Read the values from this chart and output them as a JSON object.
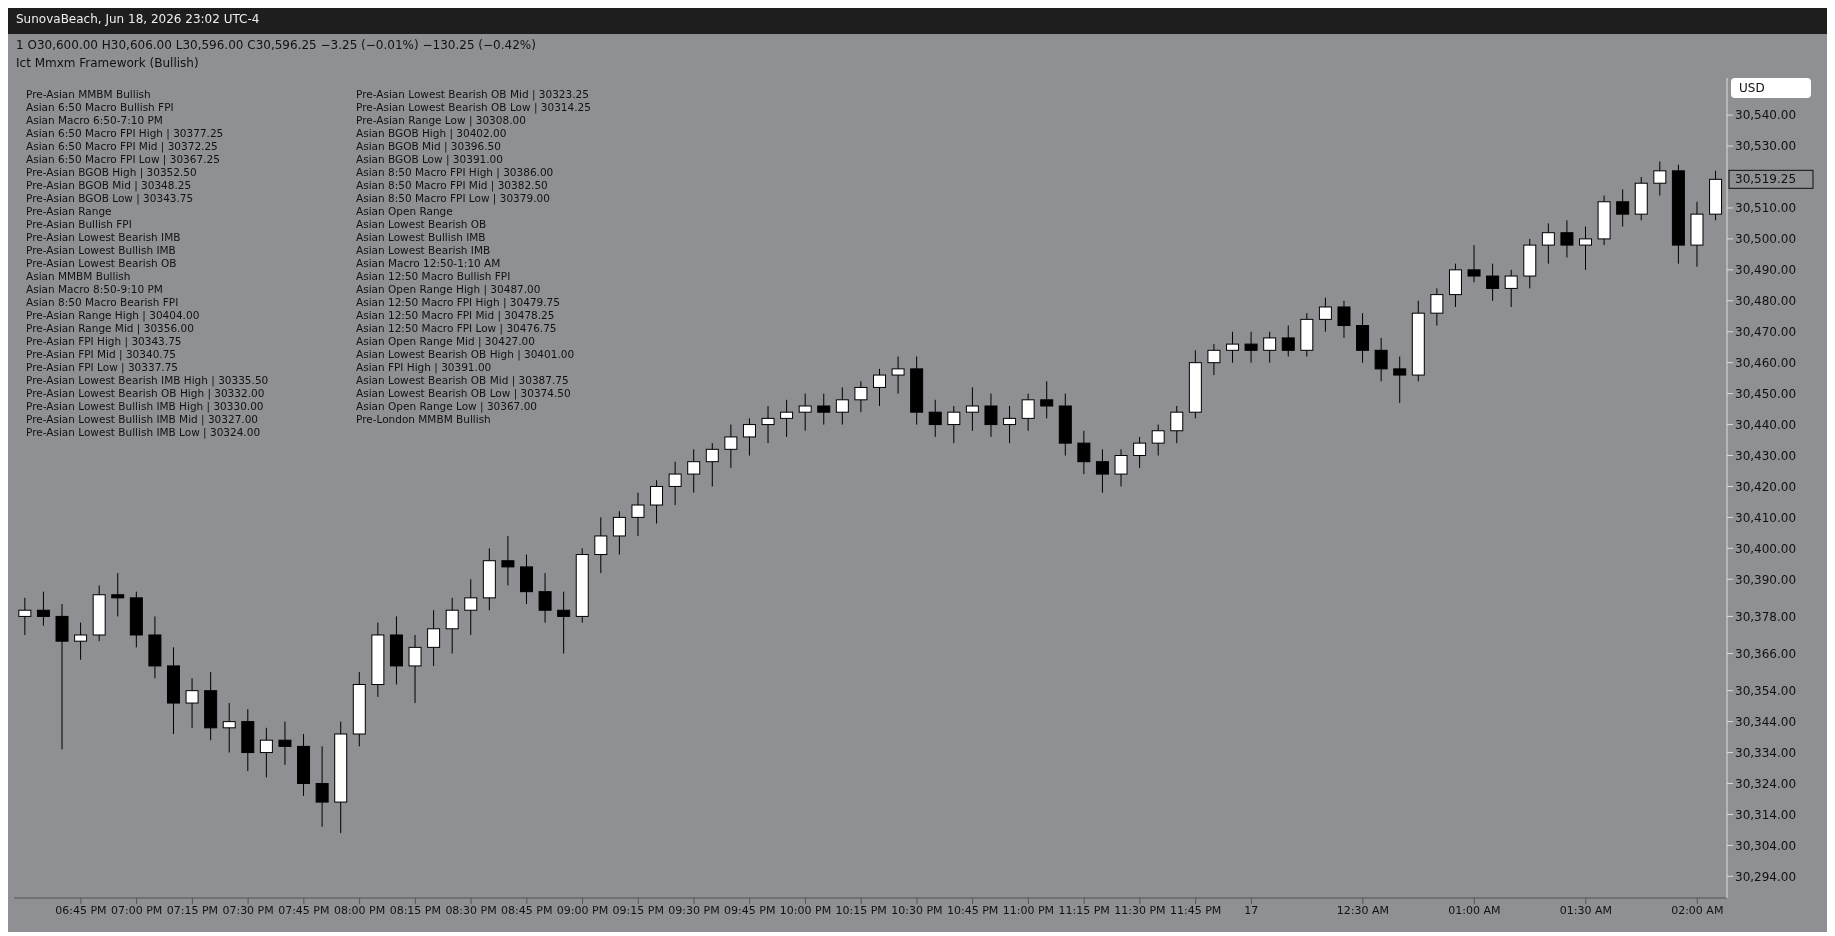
{
  "chart_data": {
    "type": "candlestick",
    "title": "SunovaBeach, Jun 18, 2026 23:02 UTC-4",
    "subtitle": "1  O30,600.00  H30,606.00  L30,596.00  C30,596.25  −3.25 (−0.01%)  −130.25 (−0.42%)",
    "x": [
      "2026-06-16T18:30",
      "2026-06-16T18:35",
      "2026-06-16T18:40",
      "2026-06-16T18:45",
      "2026-06-16T18:50",
      "2026-06-16T18:55",
      "2026-06-16T19:00",
      "2026-06-16T19:05",
      "2026-06-16T19:10",
      "2026-06-16T19:15",
      "2026-06-16T19:20",
      "2026-06-16T19:25",
      "2026-06-16T19:30",
      "2026-06-16T19:35",
      "2026-06-16T19:40",
      "2026-06-16T19:45",
      "2026-06-16T19:50",
      "2026-06-16T19:55",
      "2026-06-16T20:00",
      "2026-06-16T20:05",
      "2026-06-16T20:10",
      "2026-06-16T20:15",
      "2026-06-16T20:20",
      "2026-06-16T20:25",
      "2026-06-16T20:30",
      "2026-06-16T20:35",
      "2026-06-16T20:40",
      "2026-06-16T20:45",
      "2026-06-16T20:50",
      "2026-06-16T20:55",
      "2026-06-16T21:00",
      "2026-06-16T21:05",
      "2026-06-16T21:10",
      "2026-06-16T21:15",
      "2026-06-16T21:20",
      "2026-06-16T21:25",
      "2026-06-16T21:30",
      "2026-06-16T21:35",
      "2026-06-16T21:40",
      "2026-06-16T21:45",
      "2026-06-16T21:50",
      "2026-06-16T21:55",
      "2026-06-16T22:00",
      "2026-06-16T22:05",
      "2026-06-16T22:10",
      "2026-06-16T22:15",
      "2026-06-16T22:20",
      "2026-06-16T22:25",
      "2026-06-16T22:30",
      "2026-06-16T22:35",
      "2026-06-16T22:40",
      "2026-06-16T22:45",
      "2026-06-16T22:50",
      "2026-06-16T22:55",
      "2026-06-16T23:00",
      "2026-06-16T23:05",
      "2026-06-16T23:10",
      "2026-06-16T23:15",
      "2026-06-16T23:20",
      "2026-06-16T23:25",
      "2026-06-16T23:30",
      "2026-06-16T23:35",
      "2026-06-16T23:40",
      "2026-06-16T23:45",
      "2026-06-16T23:50",
      "2026-06-16T23:55",
      "2026-06-17T00:00",
      "2026-06-17T00:05",
      "2026-06-17T00:10",
      "2026-06-17T00:15",
      "2026-06-17T00:20",
      "2026-06-17T00:25",
      "2026-06-17T00:30",
      "2026-06-17T00:35",
      "2026-06-17T00:40",
      "2026-06-17T00:45",
      "2026-06-17T00:50",
      "2026-06-17T00:55",
      "2026-06-17T01:00",
      "2026-06-17T01:05",
      "2026-06-17T01:10",
      "2026-06-17T01:15",
      "2026-06-17T01:20",
      "2026-06-17T01:25",
      "2026-06-17T01:30",
      "2026-06-17T01:35",
      "2026-06-17T01:40",
      "2026-06-17T01:45",
      "2026-06-17T01:50",
      "2026-06-17T01:55",
      "2026-06-17T02:00",
      "2026-06-17T02:05"
    ],
    "ohlc": [
      [
        30378,
        30384,
        30372,
        30380
      ],
      [
        30380,
        30386,
        30375,
        30378
      ],
      [
        30378,
        30382,
        30335,
        30370
      ],
      [
        30370,
        30376,
        30364,
        30372
      ],
      [
        30372,
        30388,
        30370,
        30385
      ],
      [
        30385,
        30392,
        30378,
        30384
      ],
      [
        30384,
        30386,
        30368,
        30372
      ],
      [
        30372,
        30378,
        30358,
        30362
      ],
      [
        30362,
        30368,
        30340,
        30350
      ],
      [
        30350,
        30358,
        30342,
        30354
      ],
      [
        30354,
        30360,
        30338,
        30342
      ],
      [
        30342,
        30350,
        30334,
        30344
      ],
      [
        30344,
        30348,
        30328,
        30334
      ],
      [
        30334,
        30342,
        30326,
        30338
      ],
      [
        30338,
        30344,
        30330,
        30336
      ],
      [
        30336,
        30340,
        30320,
        30324
      ],
      [
        30324,
        30336,
        30310,
        30318
      ],
      [
        30318,
        30344,
        30308,
        30340
      ],
      [
        30340,
        30360,
        30336,
        30356
      ],
      [
        30356,
        30376,
        30352,
        30372
      ],
      [
        30372,
        30378,
        30356,
        30362
      ],
      [
        30362,
        30372,
        30350,
        30368
      ],
      [
        30368,
        30380,
        30362,
        30374
      ],
      [
        30374,
        30384,
        30366,
        30380
      ],
      [
        30380,
        30390,
        30372,
        30384
      ],
      [
        30384,
        30400,
        30380,
        30396
      ],
      [
        30396,
        30404,
        30388,
        30394
      ],
      [
        30394,
        30398,
        30382,
        30386
      ],
      [
        30386,
        30392,
        30376,
        30380
      ],
      [
        30380,
        30386,
        30366,
        30378
      ],
      [
        30378,
        30400,
        30376,
        30398
      ],
      [
        30398,
        30410,
        30392,
        30404
      ],
      [
        30404,
        30412,
        30398,
        30410
      ],
      [
        30410,
        30418,
        30404,
        30414
      ],
      [
        30414,
        30422,
        30408,
        30420
      ],
      [
        30420,
        30428,
        30414,
        30424
      ],
      [
        30424,
        30432,
        30418,
        30428
      ],
      [
        30428,
        30434,
        30420,
        30432
      ],
      [
        30432,
        30440,
        30426,
        30436
      ],
      [
        30436,
        30442,
        30430,
        30440
      ],
      [
        30440,
        30446,
        30434,
        30442
      ],
      [
        30442,
        30448,
        30436,
        30444
      ],
      [
        30444,
        30450,
        30438,
        30446
      ],
      [
        30446,
        30450,
        30440,
        30444
      ],
      [
        30444,
        30452,
        30440,
        30448
      ],
      [
        30448,
        30454,
        30444,
        30452
      ],
      [
        30452,
        30458,
        30446,
        30456
      ],
      [
        30456,
        30462,
        30450,
        30458
      ],
      [
        30458,
        30462,
        30440,
        30444
      ],
      [
        30444,
        30448,
        30436,
        30440
      ],
      [
        30440,
        30446,
        30434,
        30444
      ],
      [
        30444,
        30452,
        30438,
        30446
      ],
      [
        30446,
        30450,
        30436,
        30440
      ],
      [
        30440,
        30446,
        30434,
        30442
      ],
      [
        30442,
        30450,
        30438,
        30448
      ],
      [
        30448,
        30454,
        30442,
        30446
      ],
      [
        30446,
        30450,
        30430,
        30434
      ],
      [
        30434,
        30438,
        30424,
        30428
      ],
      [
        30428,
        30432,
        30418,
        30424
      ],
      [
        30424,
        30432,
        30420,
        30430
      ],
      [
        30430,
        30436,
        30426,
        30434
      ],
      [
        30434,
        30440,
        30430,
        30438
      ],
      [
        30438,
        30446,
        30434,
        30444
      ],
      [
        30444,
        30464,
        30442,
        30460
      ],
      [
        30460,
        30466,
        30456,
        30464
      ],
      [
        30464,
        30470,
        30460,
        30466
      ],
      [
        30466,
        30470,
        30460,
        30464
      ],
      [
        30464,
        30470,
        30460,
        30468
      ],
      [
        30468,
        30472,
        30462,
        30464
      ],
      [
        30464,
        30476,
        30462,
        30474
      ],
      [
        30474,
        30481,
        30470,
        30478
      ],
      [
        30478,
        30480,
        30468,
        30472
      ],
      [
        30472,
        30476,
        30460,
        30464
      ],
      [
        30464,
        30468,
        30454,
        30458
      ],
      [
        30458,
        30462,
        30447,
        30456
      ],
      [
        30456,
        30480,
        30454,
        30476
      ],
      [
        30476,
        30484,
        30472,
        30482
      ],
      [
        30482,
        30492,
        30478,
        30490
      ],
      [
        30490,
        30498,
        30486,
        30488
      ],
      [
        30488,
        30492,
        30480,
        30484
      ],
      [
        30484,
        30490,
        30478,
        30488
      ],
      [
        30488,
        30500,
        30484,
        30498
      ],
      [
        30498,
        30505,
        30492,
        30502
      ],
      [
        30502,
        30506,
        30494,
        30498
      ],
      [
        30498,
        30504,
        30490,
        30500
      ],
      [
        30500,
        30514,
        30498,
        30512
      ],
      [
        30512,
        30516,
        30504,
        30508
      ],
      [
        30508,
        30520,
        30506,
        30518
      ],
      [
        30518,
        30525,
        30514,
        30522
      ],
      [
        30522,
        30524,
        30492,
        30498
      ],
      [
        30498,
        30512,
        30491,
        30508
      ],
      [
        30508,
        30522,
        30506,
        30519.25
      ]
    ],
    "xlim": [
      "2026-06-16T18:27",
      "2026-06-17T02:08"
    ],
    "xticks": [
      {
        "value": "2026-06-16T18:45",
        "label": "06:45 PM"
      },
      {
        "value": "2026-06-16T19:00",
        "label": "07:00 PM"
      },
      {
        "value": "2026-06-16T19:15",
        "label": "07:15 PM"
      },
      {
        "value": "2026-06-16T19:30",
        "label": "07:30 PM"
      },
      {
        "value": "2026-06-16T19:45",
        "label": "07:45 PM"
      },
      {
        "value": "2026-06-16T20:00",
        "label": "08:00 PM"
      },
      {
        "value": "2026-06-16T20:15",
        "label": "08:15 PM"
      },
      {
        "value": "2026-06-16T20:30",
        "label": "08:30 PM"
      },
      {
        "value": "2026-06-16T20:45",
        "label": "08:45 PM"
      },
      {
        "value": "2026-06-16T21:00",
        "label": "09:00 PM"
      },
      {
        "value": "2026-06-16T21:15",
        "label": "09:15 PM"
      },
      {
        "value": "2026-06-16T21:30",
        "label": "09:30 PM"
      },
      {
        "value": "2026-06-16T21:45",
        "label": "09:45 PM"
      },
      {
        "value": "2026-06-16T22:00",
        "label": "10:00 PM"
      },
      {
        "value": "2026-06-16T22:15",
        "label": "10:15 PM"
      },
      {
        "value": "2026-06-16T22:30",
        "label": "10:30 PM"
      },
      {
        "value": "2026-06-16T22:45",
        "label": "10:45 PM"
      },
      {
        "value": "2026-06-16T23:00",
        "label": "11:00 PM"
      },
      {
        "value": "2026-06-16T23:15",
        "label": "11:15 PM"
      },
      {
        "value": "2026-06-16T23:30",
        "label": "11:30 PM"
      },
      {
        "value": "2026-06-16T23:45",
        "label": "11:45 PM"
      },
      {
        "value": "2026-06-17T00:00",
        "label": "17"
      },
      {
        "value": "2026-06-17T00:30",
        "label": "12:30 AM"
      },
      {
        "value": "2026-06-17T01:00",
        "label": "01:00 AM"
      },
      {
        "value": "2026-06-17T01:30",
        "label": "01:30 AM"
      },
      {
        "value": "2026-06-17T02:00",
        "label": "02:00 AM"
      }
    ],
    "ylim": [
      30287,
      30552
    ],
    "yticks": [
      {
        "value": 30294,
        "label": "30,294.00"
      },
      {
        "value": 30304,
        "label": "30,304.00"
      },
      {
        "value": 30314,
        "label": "30,314.00"
      },
      {
        "value": 30324,
        "label": "30,324.00"
      },
      {
        "value": 30334,
        "label": "30,334.00"
      },
      {
        "value": 30344,
        "label": "30,344.00"
      },
      {
        "value": 30354,
        "label": "30,354.00"
      },
      {
        "value": 30366,
        "label": "30,366.00"
      },
      {
        "value": 30378,
        "label": "30,378.00"
      },
      {
        "value": 30390,
        "label": "30,390.00"
      },
      {
        "value": 30400,
        "label": "30,400.00"
      },
      {
        "value": 30410,
        "label": "30,410.00"
      },
      {
        "value": 30420,
        "label": "30,420.00"
      },
      {
        "value": 30430,
        "label": "30,430.00"
      },
      {
        "value": 30440,
        "label": "30,440.00"
      },
      {
        "value": 30450,
        "label": "30,450.00"
      },
      {
        "value": 30460,
        "label": "30,460.00"
      },
      {
        "value": 30470,
        "label": "30,470.00"
      },
      {
        "value": 30480,
        "label": "30,480.00"
      },
      {
        "value": 30490,
        "label": "30,490.00"
      },
      {
        "value": 30500,
        "label": "30,500.00"
      },
      {
        "value": 30510,
        "label": "30,510.00"
      },
      {
        "value": 30530,
        "label": "30,530.00"
      },
      {
        "value": 30540,
        "label": "30,540.00"
      }
    ],
    "annotations": [
      "Ict Mmxm Framework (Bullish)",
      "USD",
      "30,519.25",
      "Pre-Asian MMBM Bullish",
      "Asian 6:50 Macro Bullish FPI",
      "Asian Macro 6:50-7:10 PM",
      "Asian 6:50 Macro FPI High | 30377.25",
      "Asian 6:50 Macro FPI Mid | 30372.25",
      "Asian 6:50 Macro FPI Low | 30367.25",
      "Pre-Asian BGOB High | 30352.50",
      "Pre-Asian BGOB Mid | 30348.25",
      "Pre-Asian BGOB Low | 30343.75",
      "Pre-Asian Range",
      "Pre-Asian Bullish FPI",
      "Pre-Asian Lowest Bearish IMB",
      "Pre-Asian Lowest Bullish IMB",
      "Pre-Asian Lowest Bearish OB",
      "Asian MMBM Bullish",
      "Asian Macro 8:50-9:10 PM",
      "Asian 8:50 Macro Bearish FPI",
      "Pre-Asian Range High | 30404.00",
      "Pre-Asian Range Mid | 30356.00",
      "Pre-Asian FPI High | 30343.75",
      "Pre-Asian FPI Mid | 30340.75",
      "Pre-Asian FPI Low | 30337.75",
      "Pre-Asian Lowest Bearish IMB High | 30335.50",
      "Pre-Asian Lowest Bearish OB High | 30332.00",
      "Pre-Asian Lowest Bullish IMB High | 30330.00",
      "Pre-Asian Lowest Bullish IMB Mid | 30327.00",
      "Pre-Asian Lowest Bullish IMB Low | 30324.00",
      "Pre-Asian Lowest Bearish OB Mid | 30323.25",
      "Pre-Asian Lowest Bearish OB Low | 30314.25",
      "Pre-Asian Range Low | 30308.00",
      "Asian BGOB High | 30402.00",
      "Asian BGOB Mid | 30396.50",
      "Asian BGOB Low | 30391.00",
      "Asian 8:50 Macro FPI High | 30386.00",
      "Asian 8:50 Macro FPI Mid | 30382.50",
      "Asian 8:50 Macro FPI Low | 30379.00",
      "Asian Open Range",
      "Asian Lowest Bearish OB",
      "Asian Lowest Bullish IMB",
      "Asian Lowest Bearish IMB",
      "Asian Macro 12:50-1:10 AM",
      "Asian 12:50 Macro Bullish FPI",
      "Asian Open Range High | 30487.00",
      "Asian 12:50 Macro FPI High | 30479.75",
      "Asian 12:50 Macro FPI Mid | 30478.25",
      "Asian 12:50 Macro FPI Low | 30476.75",
      "Asian Open Range Mid | 30427.00",
      "Asian Lowest Bearish OB High | 30401.00",
      "Asian FPI High | 30391.00",
      "Asian Lowest Bearish OB Mid | 30387.75",
      "Asian Lowest Bearish OB Low | 30374.50",
      "Asian Open Range Low | 30367.00",
      "Pre-London MMBM Bullish"
    ]
  }
}
